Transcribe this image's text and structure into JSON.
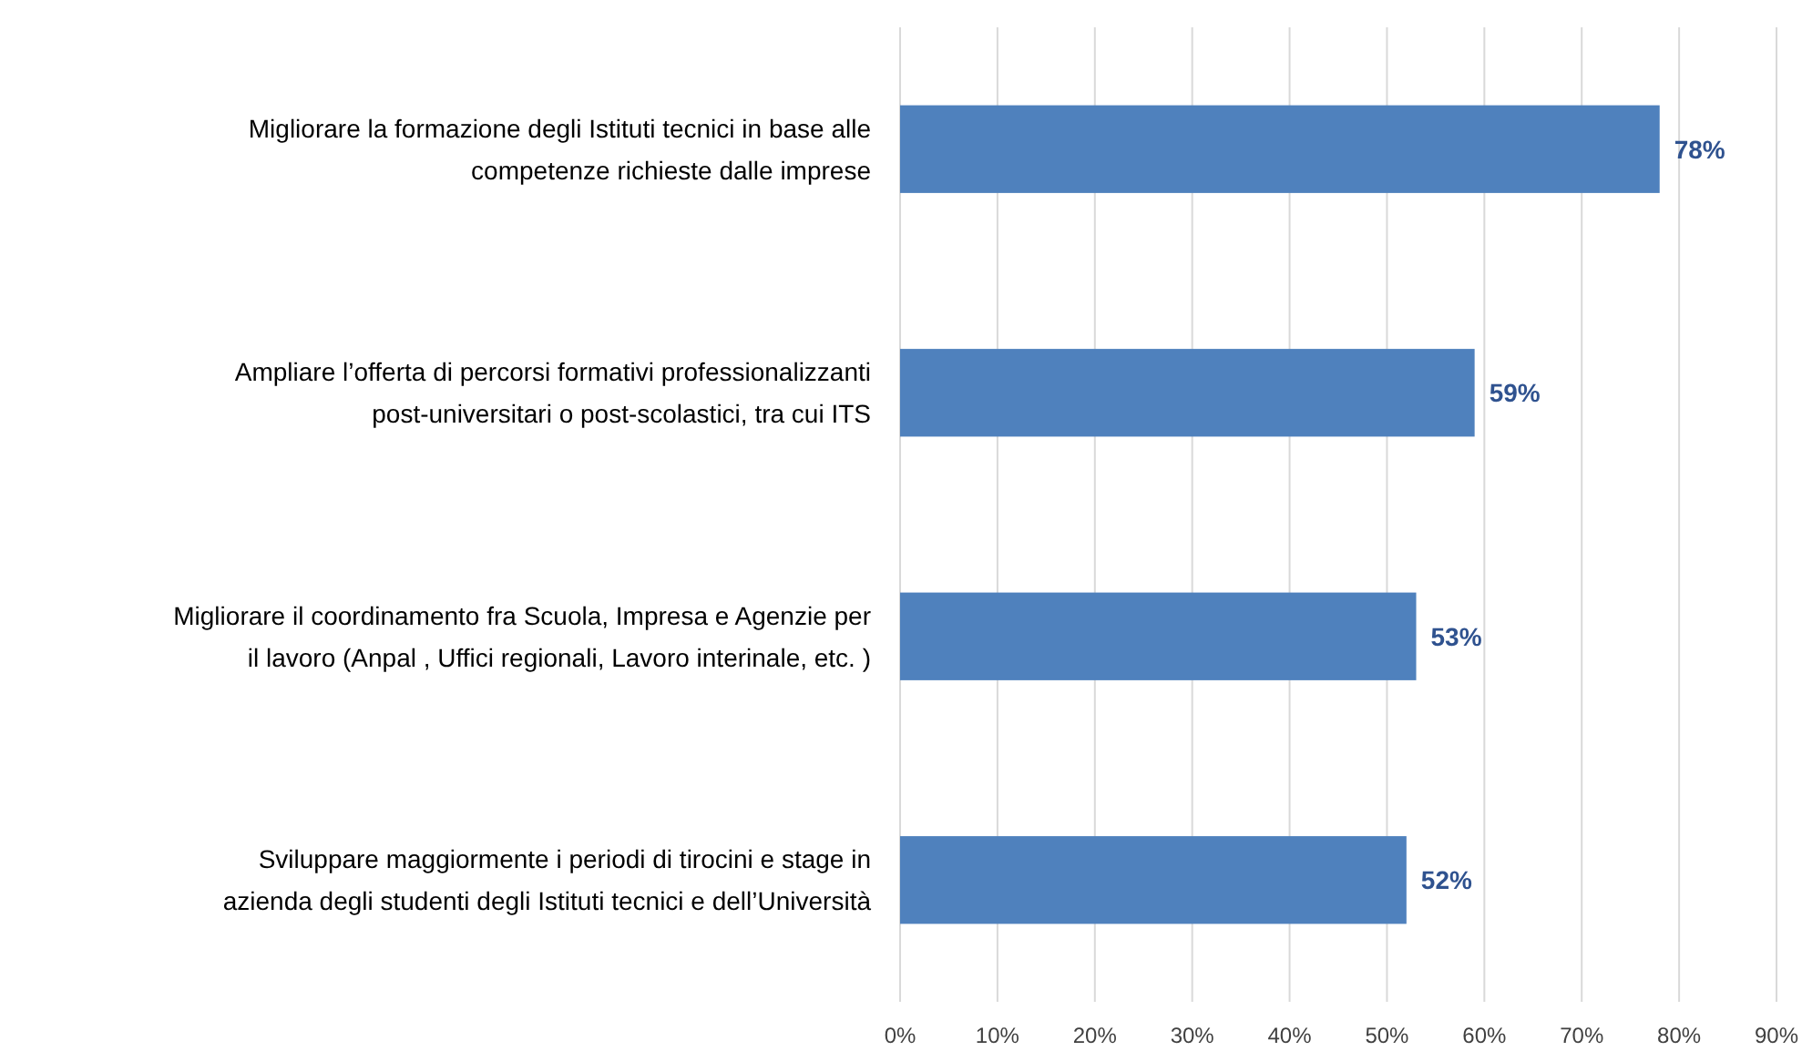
{
  "chart_data": {
    "type": "bar",
    "orientation": "horizontal",
    "categories": [
      "Migliorare la formazione degli Istituti tecnici in base alle\ncompetenze richieste dalle imprese",
      "Ampliare l’offerta di percorsi formativi professionalizzanti\npost-universitari o post-scolastici, tra cui ITS",
      "Migliorare il coordinamento fra Scuola, Impresa e Agenzie per\nil lavoro (Anpal , Uffici regionali, Lavoro interinale, etc. )",
      "Sviluppare maggiormente i periodi di tirocini e stage in\nazienda degli studenti degli Istituti tecnici e dell’Università"
    ],
    "values": [
      78,
      59,
      53,
      52
    ],
    "value_labels": [
      "78%",
      "59%",
      "53%",
      "52%"
    ],
    "color": "#4f81bd",
    "xlim": [
      0,
      90
    ],
    "xticks": [
      {
        "value": 0,
        "label": "0%"
      },
      {
        "value": 10,
        "label": "10%"
      },
      {
        "value": 20,
        "label": "20%"
      },
      {
        "value": 30,
        "label": "30%"
      },
      {
        "value": 40,
        "label": "40%"
      },
      {
        "value": 50,
        "label": "50%"
      },
      {
        "value": 60,
        "label": "60%"
      },
      {
        "value": 70,
        "label": "70%"
      },
      {
        "value": 80,
        "label": "80%"
      },
      {
        "value": 90,
        "label": "90%"
      }
    ],
    "grid": "x"
  }
}
